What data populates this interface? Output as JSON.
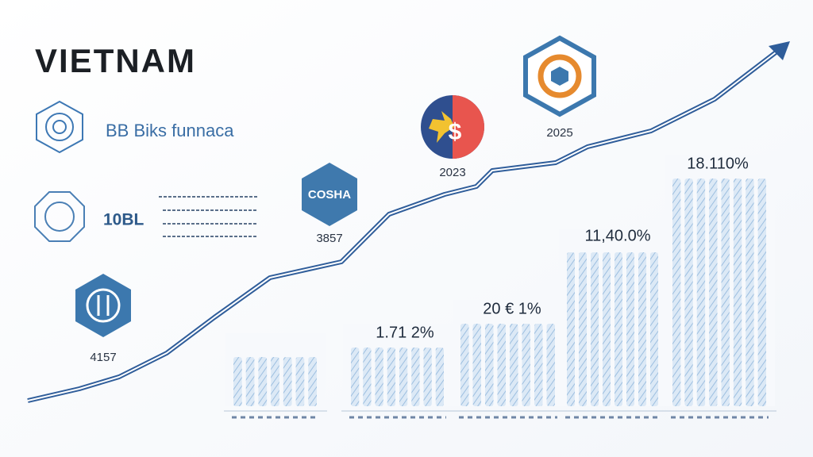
{
  "header": {
    "title": "VIETNAM"
  },
  "legend": [
    {
      "label": "BB Biks funnaca"
    },
    {
      "label": "10BL"
    }
  ],
  "badges": [
    {
      "caption": "4157"
    },
    {
      "icon_text": "COSHA",
      "caption": "3857"
    },
    {
      "caption": "2023"
    },
    {
      "caption": "2025"
    }
  ],
  "bar_labels": [
    "1.71 2%",
    "20 € 1%",
    "11,40.0%",
    "18.110%"
  ]
}
